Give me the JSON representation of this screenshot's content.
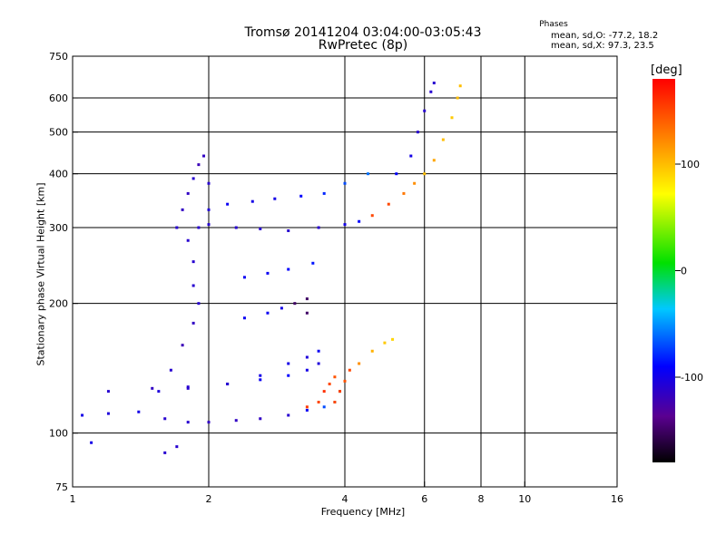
{
  "header": {
    "title_line1": "Tromsø 20141204 03:04:00-03:05:43",
    "title_line2": "RwPretec (8p)",
    "stats_heading": "Phases",
    "stats_o": "mean, sd,O: -77.2, 18.2",
    "stats_x": "mean, sd,X:  97.3, 23.5"
  },
  "colorbar": {
    "label": "[deg]",
    "ticks": [
      "100",
      "0",
      "-100"
    ]
  },
  "chart_data": {
    "type": "scatter",
    "xlabel": "Frequency [MHz]",
    "ylabel": "Stationary phase Virtual Height [km]",
    "x_scale": "log",
    "y_scale": "log",
    "xlim": [
      1,
      16
    ],
    "ylim": [
      75,
      750
    ],
    "x_ticks": [
      "1",
      "2",
      "4",
      "6",
      "8",
      "10",
      "16"
    ],
    "y_ticks": [
      "75",
      "100",
      "200",
      "300",
      "400",
      "500",
      "600",
      "750"
    ],
    "x_grid": [
      2,
      4,
      6,
      8,
      10
    ],
    "y_grid": [
      100,
      200,
      300,
      400,
      500,
      600
    ],
    "color_range": [
      -180,
      180
    ],
    "traces": [
      {
        "points": [
          [
            1.05,
            110,
            -100
          ],
          [
            1.2,
            111,
            -105
          ],
          [
            1.4,
            112,
            -100
          ],
          [
            1.6,
            108,
            -110
          ],
          [
            1.8,
            106,
            -110
          ],
          [
            2.0,
            106,
            -115
          ],
          [
            2.3,
            107,
            -115
          ],
          [
            2.6,
            108,
            -115
          ],
          [
            3.0,
            110,
            -110
          ],
          [
            3.3,
            113,
            -95
          ],
          [
            3.6,
            115,
            -70
          ],
          [
            3.8,
            118,
            -40
          ],
          [
            3.9,
            125,
            -20
          ]
        ]
      },
      {
        "points": [
          [
            1.2,
            125,
            -110
          ],
          [
            1.5,
            127,
            -115
          ],
          [
            1.8,
            128,
            -110
          ],
          [
            2.2,
            130,
            -100
          ],
          [
            2.6,
            133,
            -95
          ],
          [
            3.0,
            136,
            -90
          ],
          [
            3.3,
            140,
            -100
          ],
          [
            3.5,
            145,
            -105
          ]
        ]
      },
      {
        "points": [
          [
            1.8,
            127,
            -110
          ],
          [
            2.2,
            130,
            -110
          ],
          [
            2.6,
            136,
            -100
          ],
          [
            3.0,
            145,
            -100
          ],
          [
            3.3,
            150,
            -105
          ],
          [
            3.5,
            155,
            -95
          ]
        ]
      },
      {
        "points": [
          [
            3.8,
            118,
            150
          ],
          [
            3.9,
            125,
            155
          ],
          [
            4.0,
            132,
            145
          ],
          [
            4.1,
            140,
            150
          ],
          [
            4.3,
            145,
            120
          ],
          [
            4.6,
            155,
            105
          ],
          [
            4.9,
            162,
            95
          ],
          [
            5.1,
            165,
            90
          ]
        ]
      },
      {
        "points": [
          [
            3.3,
            115,
            155
          ],
          [
            3.5,
            118,
            150
          ],
          [
            3.6,
            125,
            160
          ],
          [
            3.7,
            130,
            150
          ],
          [
            3.8,
            135,
            145
          ]
        ]
      },
      {
        "points": [
          [
            1.7,
            300,
            -110
          ],
          [
            1.75,
            330,
            -115
          ],
          [
            1.8,
            360,
            -115
          ],
          [
            1.85,
            390,
            -110
          ],
          [
            1.9,
            420,
            -120
          ],
          [
            1.95,
            440,
            -115
          ],
          [
            2.0,
            380,
            -110
          ],
          [
            2.0,
            330,
            -105
          ],
          [
            1.9,
            300,
            -110
          ]
        ]
      },
      {
        "points": [
          [
            1.8,
            280,
            -110
          ],
          [
            1.85,
            250,
            -110
          ],
          [
            1.85,
            220,
            -110
          ],
          [
            1.9,
            200,
            -110
          ],
          [
            1.85,
            180,
            -115
          ],
          [
            1.75,
            160,
            -120
          ],
          [
            1.65,
            140,
            -110
          ],
          [
            1.55,
            125,
            -105
          ]
        ]
      },
      {
        "points": [
          [
            2.0,
            305,
            -110
          ],
          [
            2.3,
            300,
            -110
          ],
          [
            2.6,
            298,
            -110
          ],
          [
            3.0,
            295,
            -110
          ],
          [
            3.5,
            300,
            -110
          ],
          [
            4.0,
            305,
            -100
          ],
          [
            4.3,
            310,
            -90
          ],
          [
            4.6,
            320,
            150
          ],
          [
            5.0,
            340,
            150
          ],
          [
            5.4,
            360,
            130
          ],
          [
            5.7,
            380,
            120
          ],
          [
            6.0,
            400,
            100
          ],
          [
            6.3,
            430,
            110
          ],
          [
            6.6,
            480,
            100
          ],
          [
            6.9,
            540,
            95
          ],
          [
            7.1,
            600,
            100
          ],
          [
            7.2,
            640,
            100
          ]
        ]
      },
      {
        "points": [
          [
            2.2,
            340,
            -95
          ],
          [
            2.5,
            345,
            -100
          ],
          [
            2.8,
            350,
            -100
          ],
          [
            3.2,
            355,
            -90
          ],
          [
            3.6,
            360,
            -80
          ],
          [
            4.0,
            380,
            -70
          ],
          [
            4.5,
            400,
            -60
          ]
        ]
      },
      {
        "points": [
          [
            5.2,
            400,
            -90
          ],
          [
            5.6,
            440,
            -100
          ],
          [
            5.8,
            500,
            -110
          ],
          [
            6.0,
            560,
            -110
          ],
          [
            6.2,
            620,
            -110
          ],
          [
            6.3,
            650,
            -110
          ]
        ]
      },
      {
        "points": [
          [
            2.4,
            230,
            -95
          ],
          [
            2.7,
            235,
            -95
          ],
          [
            3.0,
            240,
            -90
          ],
          [
            3.4,
            248,
            -85
          ]
        ]
      },
      {
        "points": [
          [
            2.4,
            185,
            -95
          ],
          [
            2.7,
            190,
            -95
          ],
          [
            2.9,
            195,
            -100
          ],
          [
            3.1,
            200,
            -150
          ],
          [
            3.3,
            205,
            -150
          ],
          [
            3.3,
            190,
            -150
          ]
        ]
      },
      {
        "points": [
          [
            1.1,
            95,
            -100
          ],
          [
            1.6,
            90,
            -110
          ],
          [
            1.7,
            93,
            -110
          ]
        ]
      }
    ]
  }
}
